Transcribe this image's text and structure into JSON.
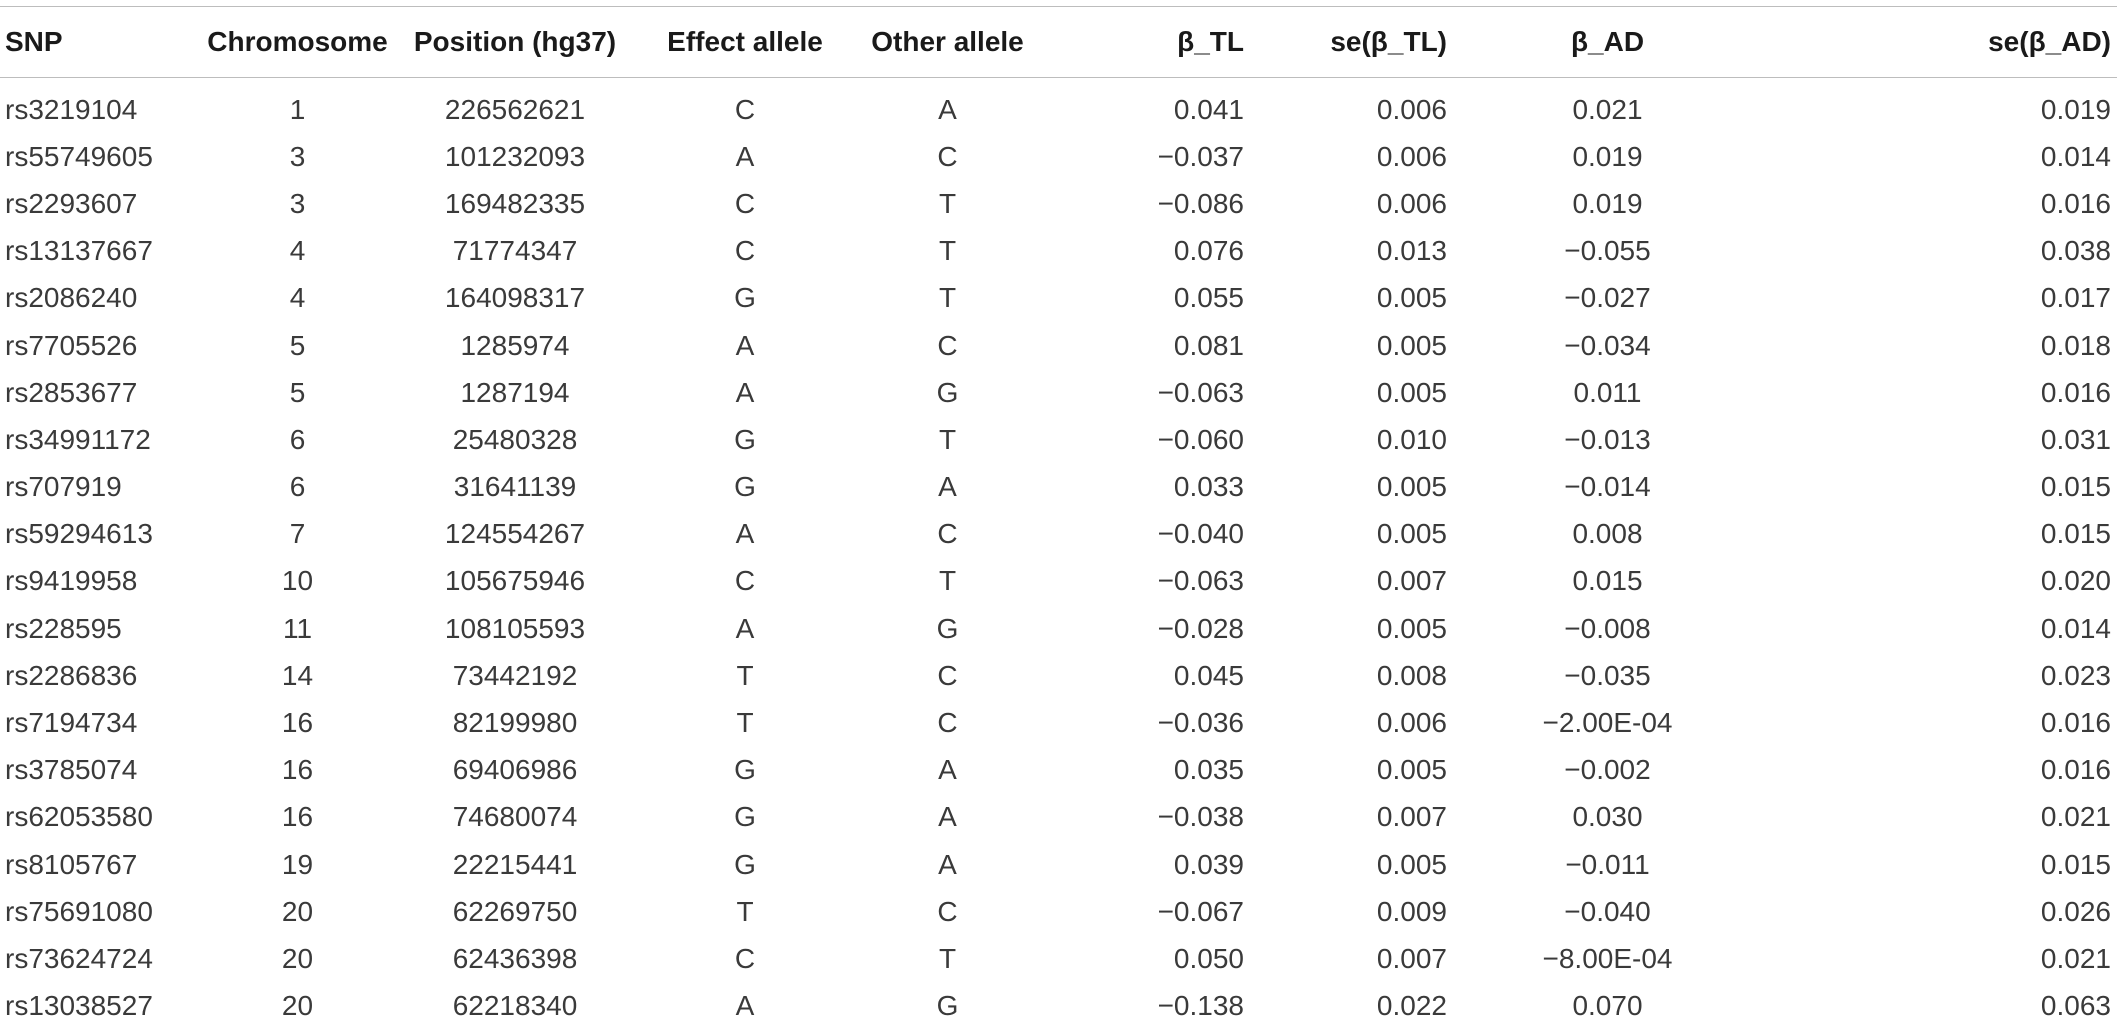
{
  "table": {
    "headers": [
      "SNP",
      "Chromosome",
      "Position (hg37)",
      "Effect allele",
      "Other allele",
      "β_TL",
      "se(β_TL)",
      "β_AD",
      "se(β_AD)"
    ],
    "rows": [
      [
        "rs3219104",
        "1",
        "226562621",
        "C",
        "A",
        "0.041",
        "0.006",
        "0.021",
        "0.019"
      ],
      [
        "rs55749605",
        "3",
        "101232093",
        "A",
        "C",
        "−0.037",
        "0.006",
        "0.019",
        "0.014"
      ],
      [
        "rs2293607",
        "3",
        "169482335",
        "C",
        "T",
        "−0.086",
        "0.006",
        "0.019",
        "0.016"
      ],
      [
        "rs13137667",
        "4",
        "71774347",
        "C",
        "T",
        "0.076",
        "0.013",
        "−0.055",
        "0.038"
      ],
      [
        "rs2086240",
        "4",
        "164098317",
        "G",
        "T",
        "0.055",
        "0.005",
        "−0.027",
        "0.017"
      ],
      [
        "rs7705526",
        "5",
        "1285974",
        "A",
        "C",
        "0.081",
        "0.005",
        "−0.034",
        "0.018"
      ],
      [
        "rs2853677",
        "5",
        "1287194",
        "A",
        "G",
        "−0.063",
        "0.005",
        "0.011",
        "0.016"
      ],
      [
        "rs34991172",
        "6",
        "25480328",
        "G",
        "T",
        "−0.060",
        "0.010",
        "−0.013",
        "0.031"
      ],
      [
        "rs707919",
        "6",
        "31641139",
        "G",
        "A",
        "0.033",
        "0.005",
        "−0.014",
        "0.015"
      ],
      [
        "rs59294613",
        "7",
        "124554267",
        "A",
        "C",
        "−0.040",
        "0.005",
        "0.008",
        "0.015"
      ],
      [
        "rs9419958",
        "10",
        "105675946",
        "C",
        "T",
        "−0.063",
        "0.007",
        "0.015",
        "0.020"
      ],
      [
        "rs228595",
        "11",
        "108105593",
        "A",
        "G",
        "−0.028",
        "0.005",
        "−0.008",
        "0.014"
      ],
      [
        "rs2286836",
        "14",
        "73442192",
        "T",
        "C",
        "0.045",
        "0.008",
        "−0.035",
        "0.023"
      ],
      [
        "rs7194734",
        "16",
        "82199980",
        "T",
        "C",
        "−0.036",
        "0.006",
        "−2.00E-04",
        "0.016"
      ],
      [
        "rs3785074",
        "16",
        "69406986",
        "G",
        "A",
        "0.035",
        "0.005",
        "−0.002",
        "0.016"
      ],
      [
        "rs62053580",
        "16",
        "74680074",
        "G",
        "A",
        "−0.038",
        "0.007",
        "0.030",
        "0.021"
      ],
      [
        "rs8105767",
        "19",
        "22215441",
        "G",
        "A",
        "0.039",
        "0.005",
        "−0.011",
        "0.015"
      ],
      [
        "rs75691080",
        "20",
        "62269750",
        "T",
        "C",
        "−0.067",
        "0.009",
        "−0.040",
        "0.026"
      ],
      [
        "rs73624724",
        "20",
        "62436398",
        "C",
        "T",
        "0.050",
        "0.007",
        "−8.00E-04",
        "0.021"
      ],
      [
        "rs13038527",
        "20",
        "62218340",
        "A",
        "G",
        "−0.138",
        "0.022",
        "0.070",
        "0.063"
      ]
    ]
  }
}
